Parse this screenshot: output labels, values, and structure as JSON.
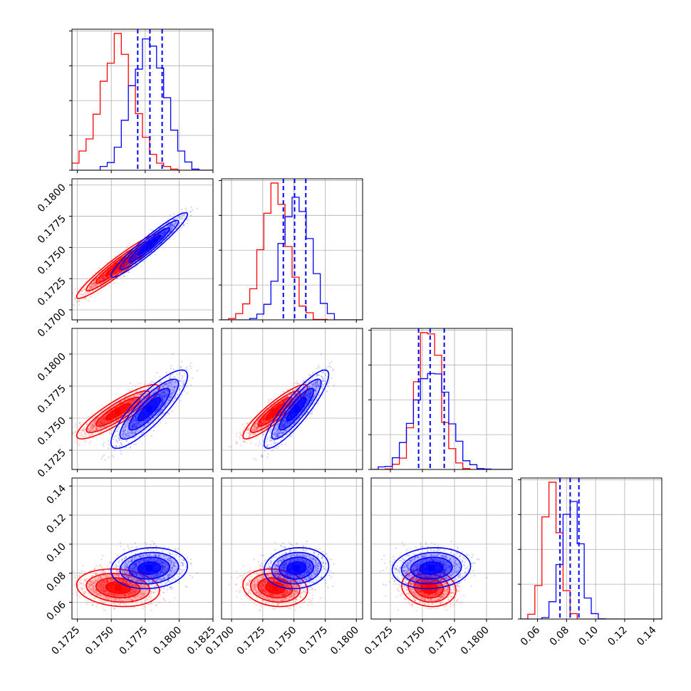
{
  "chart_data": {
    "type": "corner",
    "title": "",
    "colors": {
      "series_a": "#ff0000",
      "series_b": "#0000ff",
      "grid": "#b0b0b0",
      "axis": "#000000"
    },
    "grid": true,
    "series": [
      {
        "key": "red",
        "color": "#ff0000",
        "means": [
          0.1755,
          0.1735,
          0.1755,
          0.07
        ],
        "sds": [
          0.0013,
          0.0011,
          0.0009,
          0.0055
        ]
      },
      {
        "key": "blue",
        "color": "#0000ff",
        "means": [
          0.1778,
          0.1752,
          0.1757,
          0.0835
        ],
        "sds": [
          0.0012,
          0.0011,
          0.0013,
          0.006
        ]
      }
    ],
    "correlations": {
      "red": {
        "1-0": 0.95,
        "2-0": 0.88,
        "2-1": 0.9,
        "3-0": -0.15,
        "3-1": -0.15,
        "3-2": -0.12
      },
      "blue": {
        "1-0": 0.95,
        "2-0": 0.85,
        "2-1": 0.88,
        "3-0": 0.1,
        "3-1": 0.1,
        "3-2": 0.1
      }
    },
    "quantile_lines": [
      {
        "param": 0,
        "values": [
          0.17695,
          0.17785,
          0.17875
        ]
      },
      {
        "param": 1,
        "values": [
          0.17415,
          0.17505,
          0.17595
        ]
      },
      {
        "param": 2,
        "values": [
          0.1747,
          0.1756,
          0.1767
        ]
      },
      {
        "param": 3,
        "values": [
          0.0755,
          0.0825,
          0.0885
        ]
      }
    ],
    "parameters": [
      {
        "range": [
          0.1721,
          0.1825
        ],
        "ticks": [
          0.1725,
          0.175,
          0.1775,
          0.18,
          0.1825
        ],
        "tick_labels": [
          "0.1725",
          "0.1750",
          "0.1775",
          "0.1800",
          "0.1825"
        ]
      },
      {
        "range": [
          0.1692,
          0.1805
        ],
        "ticks": [
          0.17,
          0.1725,
          0.175,
          0.1775,
          0.18
        ],
        "tick_labels": [
          "0.1700",
          "0.1725",
          "0.1750",
          "0.1775",
          "0.1800"
        ]
      },
      {
        "range": [
          0.171,
          0.182
        ],
        "ticks": [
          0.1725,
          0.175,
          0.1775,
          0.18
        ],
        "tick_labels": [
          "0.1725",
          "0.1750",
          "0.1775",
          "0.1800"
        ]
      },
      {
        "range": [
          0.0485,
          0.1455
        ],
        "ticks": [
          0.06,
          0.08,
          0.1,
          0.12,
          0.14
        ],
        "tick_labels": [
          "0.06",
          "0.08",
          "0.10",
          "0.12",
          "0.14"
        ]
      }
    ]
  }
}
